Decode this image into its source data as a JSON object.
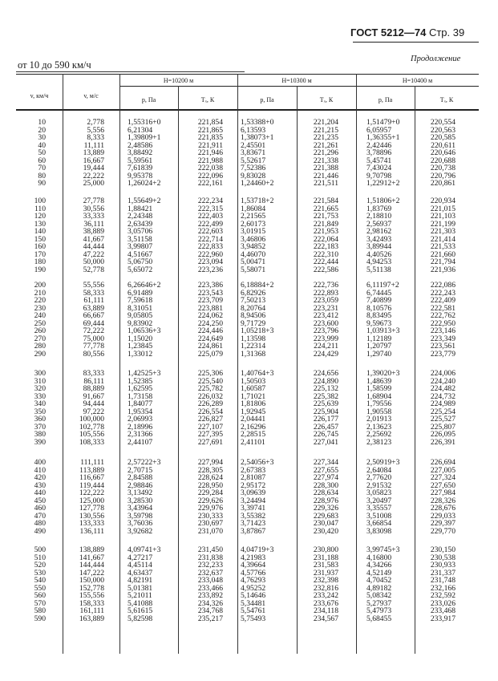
{
  "header": {
    "standard": "ГОСТ 5212—74",
    "page": "Стр. 39",
    "continuation": "Продолжение",
    "range": "от 10 до 590 км/ч"
  },
  "table": {
    "columns": {
      "v_kmh": "v, км/ч",
      "v_ms": "v, м/с",
      "p": "p, Па",
      "T": "Tₓ, К"
    },
    "groups": [
      "H=10200 м",
      "H=10300 м",
      "H=10400 м"
    ],
    "rows": [
      [
        "10",
        "2,778",
        "1,55316+0",
        "221,854",
        "1,53388+0",
        "221,204",
        "1,51479+0",
        "220,554"
      ],
      [
        "20",
        "5,556",
        "6,21304",
        "221,865",
        "6,13593",
        "221,215",
        "6,05957",
        "220,563"
      ],
      [
        "30",
        "8,333",
        "1,39809+1",
        "221,835",
        "1,38073+1",
        "221,235",
        "1,36355+1",
        "220,585"
      ],
      [
        "40",
        "11,111",
        "2,48586",
        "221,911",
        "2,45501",
        "221,261",
        "2,42446",
        "220,611"
      ],
      [
        "50",
        "13,889",
        "3,88492",
        "221,946",
        "3,83671",
        "221,296",
        "3,78896",
        "220,646"
      ],
      [
        "60",
        "16,667",
        "5,59561",
        "221,988",
        "5,52617",
        "221,338",
        "5,45741",
        "220,688"
      ],
      [
        "70",
        "19,444",
        "7,61839",
        "222,038",
        "7,52386",
        "221,388",
        "7,43024",
        "220,738"
      ],
      [
        "80",
        "22,222",
        "9,95378",
        "222,096",
        "9,83028",
        "221,446",
        "9,70798",
        "220,796"
      ],
      [
        "90",
        "25,000",
        "1,26024+2",
        "222,161",
        "1,24460+2",
        "221,511",
        "1,22912+2",
        "220,861"
      ],
      [
        "100",
        "27,778",
        "1,55649+2",
        "222,234",
        "1,53718+2",
        "221,584",
        "1,51806+2",
        "220,934"
      ],
      [
        "110",
        "30,556",
        "1,88421",
        "222,315",
        "1,86084",
        "221,665",
        "1,83769",
        "221,015"
      ],
      [
        "120",
        "33,333",
        "2,24348",
        "222,403",
        "2,21565",
        "221,753",
        "2,18810",
        "221,103"
      ],
      [
        "130",
        "36,111",
        "2,63439",
        "222,499",
        "2,60173",
        "221,849",
        "2,56937",
        "221,199"
      ],
      [
        "140",
        "38,889",
        "3,05706",
        "222,603",
        "3,01915",
        "221,953",
        "2,98162",
        "221,303"
      ],
      [
        "150",
        "41,667",
        "3,51158",
        "222,714",
        "3,46806",
        "222,064",
        "3,42493",
        "221,414"
      ],
      [
        "160",
        "44,444",
        "3,99807",
        "222,833",
        "3,94852",
        "222,183",
        "3,89944",
        "221,533"
      ],
      [
        "170",
        "47,222",
        "4,51667",
        "222,960",
        "4,46070",
        "222,310",
        "4,40526",
        "221,660"
      ],
      [
        "180",
        "50,000",
        "5,06750",
        "223,094",
        "5,00471",
        "222,444",
        "4,94253",
        "221,794"
      ],
      [
        "190",
        "52,778",
        "5,65072",
        "223,236",
        "5,58071",
        "222,586",
        "5,51138",
        "221,936"
      ],
      [
        "200",
        "55,556",
        "6,26646+2",
        "223,386",
        "6,18884+2",
        "222,736",
        "6,11197+2",
        "222,086"
      ],
      [
        "210",
        "58,333",
        "6,91489",
        "223,543",
        "6,82926",
        "222,893",
        "6,74445",
        "222,243"
      ],
      [
        "220",
        "61,111",
        "7,59618",
        "223,709",
        "7,50213",
        "223,059",
        "7,40899",
        "222,409"
      ],
      [
        "230",
        "63,889",
        "8,31051",
        "223,881",
        "8,20764",
        "223,231",
        "8,10576",
        "222,581"
      ],
      [
        "240",
        "66,667",
        "9,05805",
        "224,062",
        "8,94506",
        "223,412",
        "8,83495",
        "222,762"
      ],
      [
        "250",
        "69,444",
        "9,83902",
        "224,250",
        "9,71729",
        "223,600",
        "9,59673",
        "222,950"
      ],
      [
        "260",
        "72,222",
        "1,06536+3",
        "224,446",
        "1,05218+3",
        "223,796",
        "1,03913+3",
        "223,146"
      ],
      [
        "270",
        "75,000",
        "1,15020",
        "224,649",
        "1,13598",
        "223,999",
        "1,12189",
        "223,349"
      ],
      [
        "280",
        "77,778",
        "1,23845",
        "224,861",
        "1,22314",
        "224,211",
        "1,20797",
        "223,561"
      ],
      [
        "290",
        "80,556",
        "1,33012",
        "225,079",
        "1,31368",
        "224,429",
        "1,29740",
        "223,779"
      ],
      [
        "300",
        "83,333",
        "1,42525+3",
        "225,306",
        "1,40764+3",
        "224,656",
        "1,39020+3",
        "224,006"
      ],
      [
        "310",
        "86,111",
        "1,52385",
        "225,540",
        "1,50503",
        "224,890",
        "1,48639",
        "224,240"
      ],
      [
        "320",
        "88,889",
        "1,62595",
        "225,782",
        "1,60587",
        "225,132",
        "1,58599",
        "224,482"
      ],
      [
        "330",
        "91,667",
        "1,73158",
        "226,032",
        "1,71021",
        "225,382",
        "1,68904",
        "224,732"
      ],
      [
        "340",
        "94,444",
        "1,84077",
        "226,289",
        "1,81806",
        "225,639",
        "1,79556",
        "224,989"
      ],
      [
        "350",
        "97,222",
        "1,95354",
        "226,554",
        "1,92945",
        "225,904",
        "1,90558",
        "225,254"
      ],
      [
        "360",
        "100,000",
        "2,06993",
        "226,827",
        "2,04441",
        "226,177",
        "2,01913",
        "225,527"
      ],
      [
        "370",
        "102,778",
        "2,18996",
        "227,107",
        "2,16296",
        "226,457",
        "2,13623",
        "225,807"
      ],
      [
        "380",
        "105,556",
        "2,31366",
        "227,395",
        "2,28515",
        "226,745",
        "2,25692",
        "226,095"
      ],
      [
        "390",
        "108,333",
        "2,44107",
        "227,691",
        "2,41101",
        "227,041",
        "2,38123",
        "226,391"
      ],
      [
        "400",
        "111,111",
        "2,57222+3",
        "227,994",
        "2,54056+3",
        "227,344",
        "2,50919+3",
        "226,694"
      ],
      [
        "410",
        "113,889",
        "2,70715",
        "228,305",
        "2,67383",
        "227,655",
        "2,64084",
        "227,005"
      ],
      [
        "420",
        "116,667",
        "2,84588",
        "228,624",
        "2,81087",
        "227,974",
        "2,77620",
        "227,324"
      ],
      [
        "430",
        "119,444",
        "2,98846",
        "228,950",
        "2,95172",
        "228,300",
        "2,91532",
        "227,650"
      ],
      [
        "440",
        "122,222",
        "3,13492",
        "229,284",
        "3,09639",
        "228,634",
        "3,05823",
        "227,984"
      ],
      [
        "450",
        "125,000",
        "3,28530",
        "229,626",
        "3,24494",
        "228,976",
        "3,20497",
        "228,326"
      ],
      [
        "460",
        "127,778",
        "3,43964",
        "229,976",
        "3,39741",
        "229,326",
        "3,35557",
        "228,676"
      ],
      [
        "470",
        "130,556",
        "3,59798",
        "230,333",
        "3,55382",
        "229,683",
        "3,51008",
        "229,033"
      ],
      [
        "480",
        "133,333",
        "3,76036",
        "230,697",
        "3,71423",
        "230,047",
        "3,66854",
        "229,397"
      ],
      [
        "490",
        "136,111",
        "3,92682",
        "231,070",
        "3,87867",
        "230,420",
        "3,83098",
        "229,770"
      ],
      [
        "500",
        "138,889",
        "4,09741+3",
        "231,450",
        "4,04719+3",
        "230,800",
        "3,99745+3",
        "230,150"
      ],
      [
        "510",
        "141,667",
        "4,27217",
        "231,838",
        "4,21983",
        "231,188",
        "4,16800",
        "230,538"
      ],
      [
        "520",
        "144,444",
        "4,45114",
        "232,233",
        "4,39664",
        "231,583",
        "4,34266",
        "230,933"
      ],
      [
        "530",
        "147,222",
        "4,63437",
        "232,637",
        "4,57766",
        "231,937",
        "4,52149",
        "231,337"
      ],
      [
        "540",
        "150,000",
        "4,82191",
        "233,048",
        "4,76293",
        "232,398",
        "4,70452",
        "231,748"
      ],
      [
        "550",
        "152,778",
        "5,01381",
        "233,466",
        "4,95252",
        "232,816",
        "4,89182",
        "232,166"
      ],
      [
        "560",
        "155,556",
        "5,21011",
        "233,892",
        "5,14646",
        "233,242",
        "5,08342",
        "232,592"
      ],
      [
        "570",
        "158,333",
        "5,41088",
        "234,326",
        "5,34481",
        "233,676",
        "5,27937",
        "233,026"
      ],
      [
        "580",
        "161,111",
        "5,61615",
        "234,768",
        "5,54761",
        "234,118",
        "5,47973",
        "233,468"
      ],
      [
        "590",
        "163,889",
        "5,82598",
        "235,217",
        "5,75493",
        "234,567",
        "5,68455",
        "233,917"
      ]
    ]
  }
}
